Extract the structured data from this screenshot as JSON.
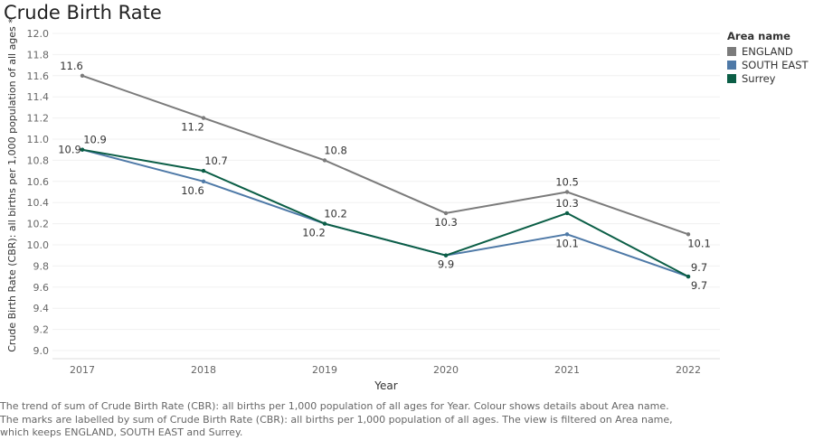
{
  "title": "Crude Birth Rate",
  "legend": {
    "title": "Area name",
    "items": [
      {
        "name": "ENGLAND",
        "color": "#7b7b7b"
      },
      {
        "name": "SOUTH EAST",
        "color": "#4e79a7"
      },
      {
        "name": "Surrey",
        "color": "#0b5e46"
      }
    ]
  },
  "caption": [
    "The trend of sum of Crude Birth Rate (CBR):  all births per 1,000 population of all ages for Year.  Colour shows details about Area name.",
    "The marks are labelled by sum of Crude Birth Rate (CBR):  all births per 1,000 population of all ages. The view is filtered on Area name,",
    "which keeps ENGLAND, SOUTH EAST and Surrey."
  ],
  "chart_data": {
    "type": "line",
    "title": "Crude Birth Rate",
    "xlabel": "Year",
    "ylabel": "Crude Birth Rate (CBR):  all births per 1,000 population of all ages *",
    "x": [
      "2017",
      "2018",
      "2019",
      "2020",
      "2021",
      "2022"
    ],
    "ylim": [
      9.0,
      12.0
    ],
    "yticks": [
      "9.0",
      "9.2",
      "9.4",
      "9.6",
      "9.8",
      "10.0",
      "10.2",
      "10.4",
      "10.6",
      "10.8",
      "11.0",
      "11.2",
      "11.4",
      "11.6",
      "11.8",
      "12.0"
    ],
    "grid": true,
    "legend_position": "top-right",
    "series": [
      {
        "name": "ENGLAND",
        "color": "#7b7b7b",
        "values": [
          11.6,
          11.2,
          10.8,
          10.3,
          10.5,
          10.1
        ],
        "labels": [
          "11.6",
          "11.2",
          "10.8",
          "10.3",
          "10.5",
          "10.1"
        ]
      },
      {
        "name": "SOUTH EAST",
        "color": "#4e79a7",
        "values": [
          10.9,
          10.6,
          10.2,
          9.9,
          10.1,
          9.7
        ],
        "labels": [
          "10.9",
          "10.6",
          "10.2",
          "9.9",
          "10.1",
          "9.7"
        ]
      },
      {
        "name": "Surrey",
        "color": "#0b5e46",
        "values": [
          10.9,
          10.7,
          10.2,
          9.9,
          10.3,
          9.7
        ],
        "labels": [
          "10.9",
          "10.7",
          "10.2",
          "",
          "10.3",
          "9.7"
        ]
      }
    ]
  }
}
